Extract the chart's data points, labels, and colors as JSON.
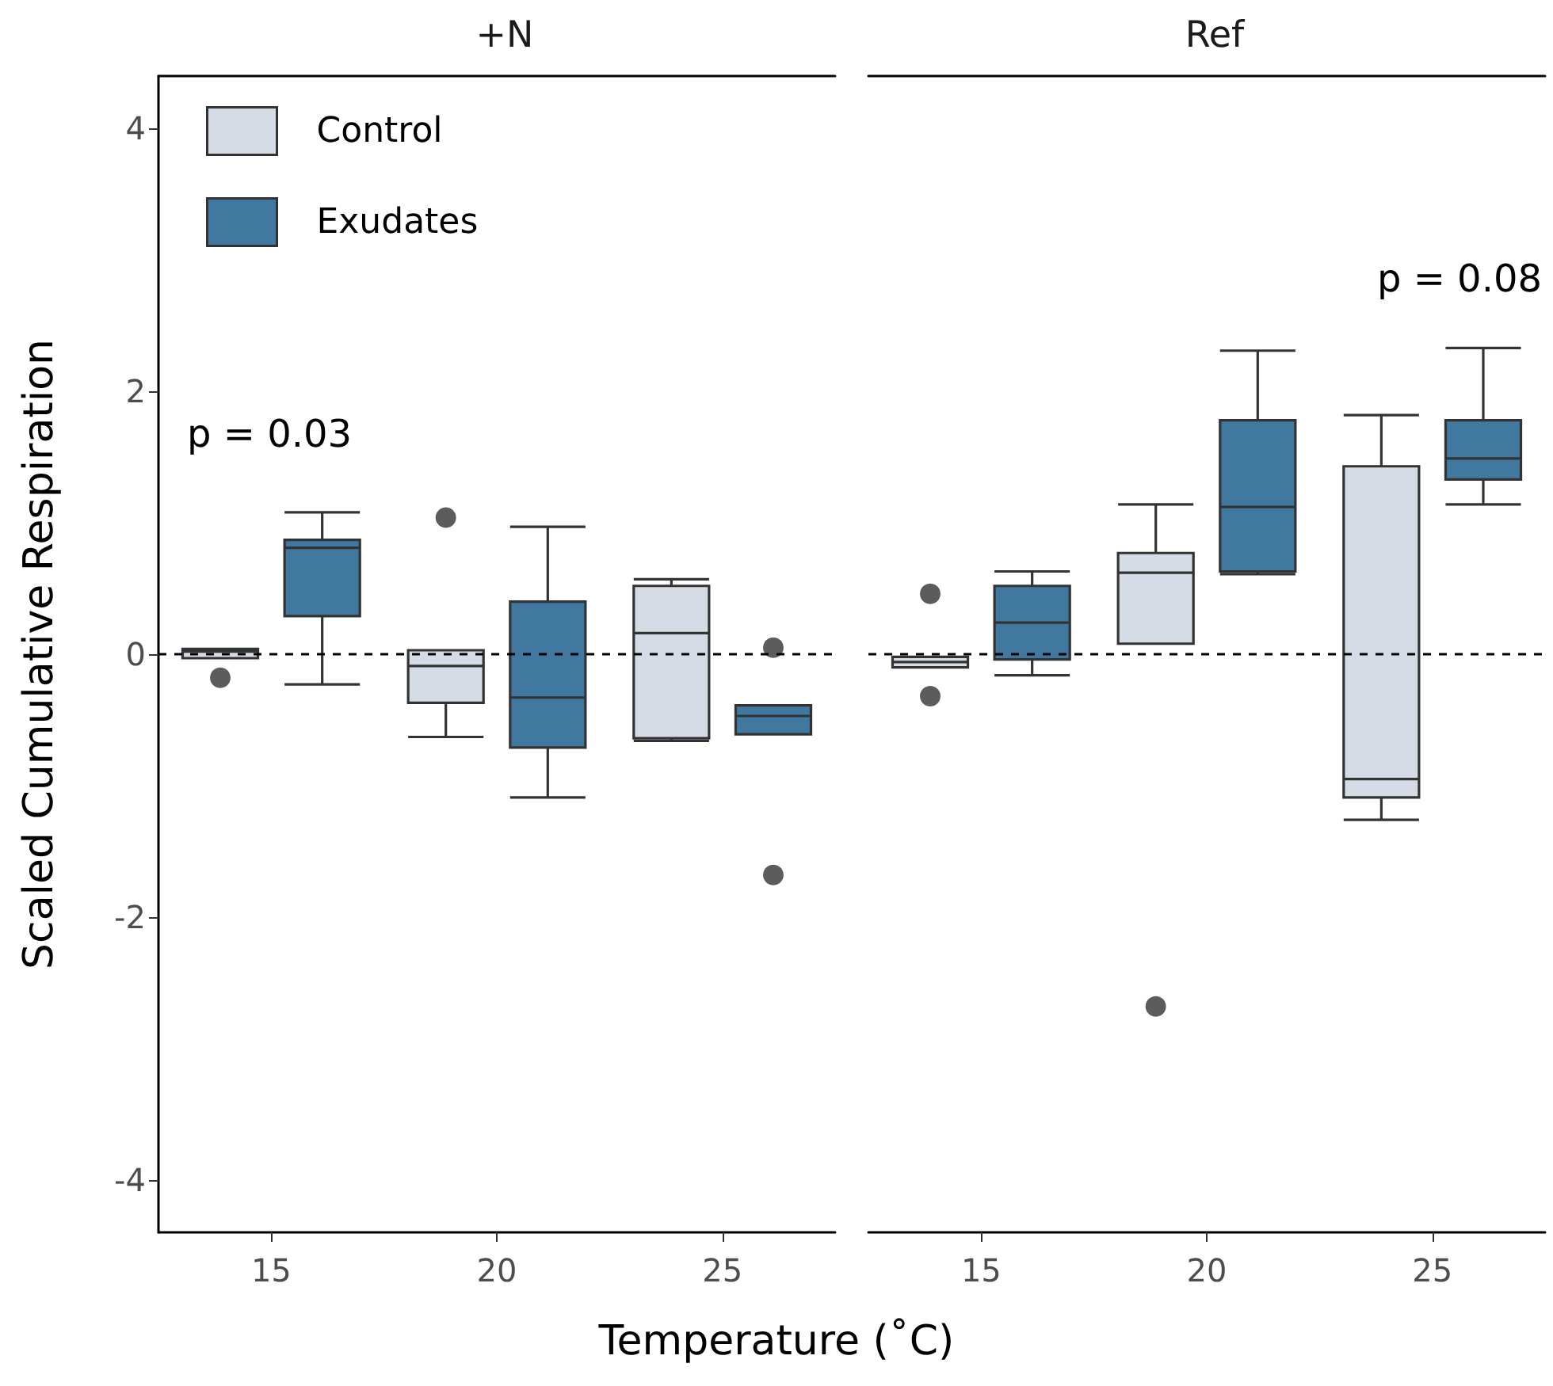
{
  "chart_data": [
    {
      "type": "box",
      "title": "+N",
      "xlabel": "Temperature (˚C)",
      "ylabel": "Scaled Cumulative Respiration",
      "categories": [
        "15",
        "20",
        "25"
      ],
      "ylim": [
        -4.4,
        4.4
      ],
      "yticks": [
        -4,
        -2,
        0,
        2,
        4
      ],
      "grid": false,
      "legend": "top left",
      "series": [
        {
          "name": "Control",
          "color": "#d6dce5",
          "boxes": [
            {
              "low": -0.03,
              "q1": -0.03,
              "median": 0.02,
              "q3": 0.04,
              "high": 0.04,
              "outliers": [
                -0.18
              ]
            },
            {
              "low": -0.63,
              "q1": -0.37,
              "median": -0.09,
              "q3": 0.03,
              "high": 0.03,
              "outliers": [
                1.04
              ]
            },
            {
              "low": -0.66,
              "q1": -0.64,
              "median": 0.16,
              "q3": 0.52,
              "high": 0.57
            }
          ]
        },
        {
          "name": "Exudates",
          "color": "#41789f",
          "boxes": [
            {
              "low": -0.23,
              "q1": 0.29,
              "median": 0.81,
              "q3": 0.87,
              "high": 1.08
            },
            {
              "low": -1.09,
              "q1": -0.71,
              "median": -0.33,
              "q3": 0.4,
              "high": 0.97
            },
            {
              "low": -0.61,
              "q1": -0.61,
              "median": -0.47,
              "q3": -0.39,
              "high": -0.39,
              "outliers": [
                0.05,
                -1.68
              ]
            }
          ]
        }
      ],
      "ref_lines": [
        {
          "axis": "y",
          "value": 0,
          "line_style": "dashed",
          "color": "#000000"
        }
      ],
      "annotations": [
        "p = 0.03"
      ]
    },
    {
      "type": "box",
      "title": "Ref",
      "categories": [
        "15",
        "20",
        "25"
      ],
      "ylim": [
        -4.4,
        4.4
      ],
      "yticks": [
        -4,
        -2,
        0,
        2,
        4
      ],
      "grid": false,
      "tick_labels": "x",
      "series": [
        {
          "color": "#d6dce5",
          "boxes": [
            {
              "low": -0.1,
              "q1": -0.1,
              "median": -0.06,
              "q3": -0.02,
              "high": -0.02,
              "outliers": [
                0.46,
                -0.32
              ]
            },
            {
              "low": 0.08,
              "q1": 0.08,
              "median": 0.62,
              "q3": 0.77,
              "high": 1.14,
              "outliers": [
                -2.68
              ]
            },
            {
              "low": -1.26,
              "q1": -1.09,
              "median": -0.95,
              "q3": 1.43,
              "high": 1.82
            }
          ]
        },
        {
          "color": "#41789f",
          "boxes": [
            {
              "low": -0.16,
              "q1": -0.04,
              "median": 0.24,
              "q3": 0.52,
              "high": 0.63
            },
            {
              "low": 0.61,
              "q1": 0.63,
              "median": 1.12,
              "q3": 1.78,
              "high": 2.31
            },
            {
              "low": 1.14,
              "q1": 1.33,
              "median": 1.49,
              "q3": 1.78,
              "high": 2.33
            }
          ]
        }
      ],
      "ref_lines": [
        {
          "axis": "y",
          "value": 0,
          "line_style": "dashed",
          "color": "#000000"
        }
      ],
      "annotations": [
        "p = 0.08"
      ]
    }
  ]
}
